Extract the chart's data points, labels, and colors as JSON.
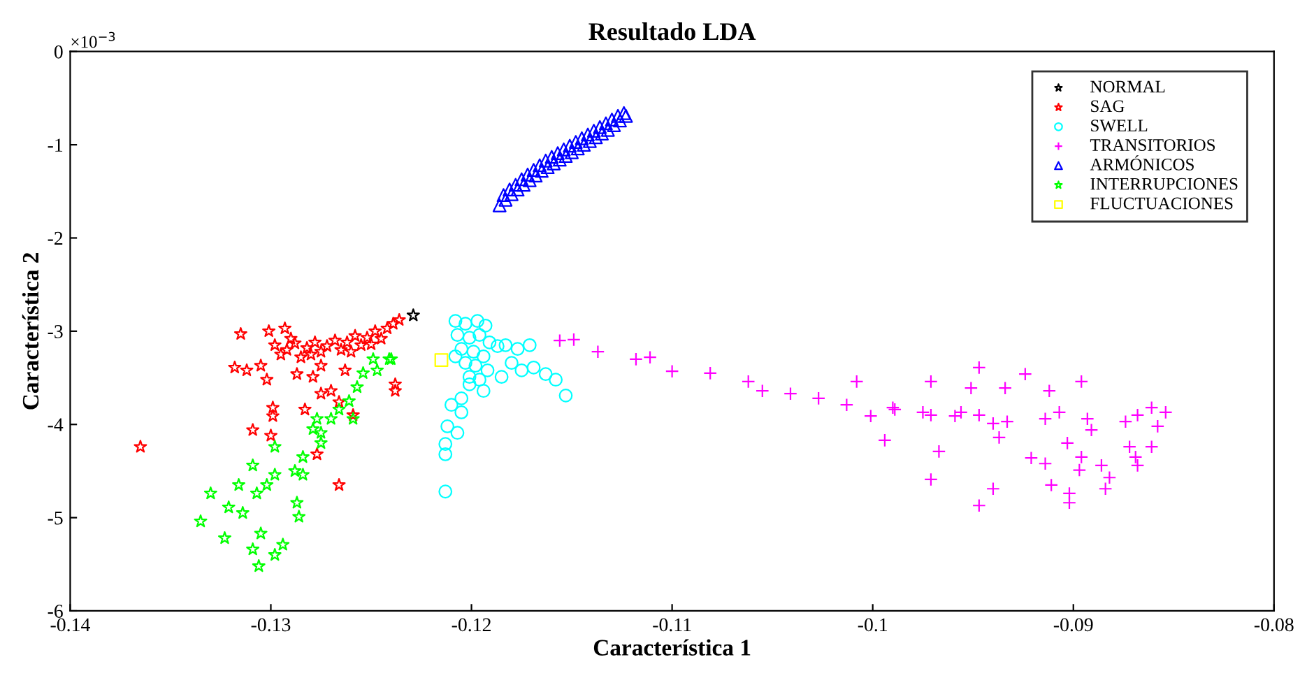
{
  "chart_data": {
    "type": "scatter",
    "title": "Resultado LDA",
    "xlabel": "Característica 1",
    "ylabel": "Característica 2",
    "annotations": [
      "×10$^{−3}$"
    ],
    "xlim": [
      -0.14,
      -0.08
    ],
    "xticks": [
      -0.14,
      -0.13,
      -0.12,
      -0.11,
      -0.1,
      -0.09,
      -0.08
    ],
    "ylim": [
      -6,
      0
    ],
    "yticks": [
      0,
      -1,
      -2,
      -3,
      -4,
      -5,
      -6
    ],
    "grid": false,
    "legend": "top right",
    "series": [
      {
        "name": "NORMAL",
        "color": "#000000",
        "marker": "star",
        "x": [
          -0.1229
        ],
        "values": [
          -2.83
        ]
      },
      {
        "name": "SAG",
        "color": "#ff0000",
        "marker": "star",
        "x": [
          -0.1365,
          -0.1315,
          -0.1318,
          -0.1312,
          -0.1305,
          -0.1302,
          -0.1301,
          -0.1293,
          -0.1299,
          -0.1299,
          -0.1309,
          -0.13,
          -0.1287,
          -0.1279,
          -0.1283,
          -0.1275,
          -0.127,
          -0.1266,
          -0.1259,
          -0.1266,
          -0.1238,
          -0.1238,
          -0.1277,
          -0.1263,
          -0.1275,
          -0.1298,
          -0.1295,
          -0.1292,
          -0.1288,
          -0.1285,
          -0.1282,
          -0.1278,
          -0.1275,
          -0.1272,
          -0.1268,
          -0.1265,
          -0.1262,
          -0.1258,
          -0.1255,
          -0.1252,
          -0.1248,
          -0.1245,
          -0.1242,
          -0.1239,
          -0.1236,
          -0.129,
          -0.128,
          -0.126,
          -0.125
        ],
        "values": [
          -4.24,
          -3.03,
          -3.39,
          -3.42,
          -3.37,
          -3.52,
          -3.0,
          -2.97,
          -3.82,
          -3.91,
          -4.06,
          -4.12,
          -3.46,
          -3.49,
          -3.84,
          -3.67,
          -3.64,
          -3.76,
          -3.9,
          -4.65,
          -3.57,
          -3.64,
          -4.32,
          -3.42,
          -3.37,
          -3.15,
          -3.25,
          -3.2,
          -3.13,
          -3.28,
          -3.18,
          -3.12,
          -3.22,
          -3.16,
          -3.1,
          -3.2,
          -3.12,
          -3.05,
          -3.15,
          -3.07,
          -3.0,
          -3.08,
          -2.97,
          -2.92,
          -2.88,
          -3.08,
          -3.25,
          -3.22,
          -3.14
        ]
      },
      {
        "name": "SWELL",
        "color": "#00ffff",
        "marker": "circle",
        "x": [
          -0.1208,
          -0.1203,
          -0.1197,
          -0.1193,
          -0.1207,
          -0.1201,
          -0.1196,
          -0.1191,
          -0.1205,
          -0.1199,
          -0.1194,
          -0.1203,
          -0.1198,
          -0.1192,
          -0.1201,
          -0.1196,
          -0.1208,
          -0.1187,
          -0.1183,
          -0.1177,
          -0.1171,
          -0.118,
          -0.1175,
          -0.1169,
          -0.1163,
          -0.1158,
          -0.1153,
          -0.1185,
          -0.1194,
          -0.1205,
          -0.121,
          -0.1205,
          -0.1212,
          -0.1213,
          -0.1213,
          -0.1213,
          -0.1207,
          -0.1201
        ],
        "values": [
          -2.89,
          -2.92,
          -2.89,
          -2.94,
          -3.04,
          -3.07,
          -3.04,
          -3.12,
          -3.19,
          -3.22,
          -3.27,
          -3.34,
          -3.37,
          -3.42,
          -3.49,
          -3.52,
          -3.27,
          -3.16,
          -3.15,
          -3.19,
          -3.15,
          -3.34,
          -3.42,
          -3.39,
          -3.46,
          -3.52,
          -3.69,
          -3.49,
          -3.64,
          -3.72,
          -3.79,
          -3.87,
          -4.02,
          -4.21,
          -4.32,
          -4.72,
          -4.09,
          -3.57
        ]
      },
      {
        "name": "TRANSITORIOS",
        "color": "#ff00ff",
        "marker": "cross",
        "x": [
          -0.1156,
          -0.1149,
          -0.1137,
          -0.1118,
          -0.1111,
          -0.11,
          -0.1081,
          -0.1062,
          -0.1055,
          -0.1041,
          -0.1027,
          -0.1008,
          -0.1013,
          -0.1001,
          -0.0994,
          -0.099,
          -0.0971,
          -0.0971,
          -0.0971,
          -0.0967,
          -0.0959,
          -0.0947,
          -0.0951,
          -0.0947,
          -0.094,
          -0.0947,
          -0.094,
          -0.0934,
          -0.0933,
          -0.0937,
          -0.0924,
          -0.0912,
          -0.0921,
          -0.0914,
          -0.0914,
          -0.0911,
          -0.0907,
          -0.0903,
          -0.0902,
          -0.0902,
          -0.0896,
          -0.0896,
          -0.0893,
          -0.0897,
          -0.0886,
          -0.0884,
          -0.0882,
          -0.0874,
          -0.0868,
          -0.0861,
          -0.0869,
          -0.0868,
          -0.0858,
          -0.0854,
          -0.0861,
          -0.0872,
          -0.0891,
          -0.0956,
          -0.0989,
          -0.0975
        ],
        "values": [
          -3.1,
          -3.09,
          -3.22,
          -3.3,
          -3.28,
          -3.43,
          -3.45,
          -3.54,
          -3.64,
          -3.67,
          -3.72,
          -3.54,
          -3.79,
          -3.91,
          -4.17,
          -3.82,
          -3.54,
          -3.9,
          -4.59,
          -4.29,
          -3.91,
          -3.39,
          -3.61,
          -4.87,
          -4.69,
          -3.9,
          -3.99,
          -3.61,
          -3.97,
          -4.14,
          -3.46,
          -3.64,
          -4.36,
          -3.94,
          -4.42,
          -4.65,
          -3.87,
          -4.2,
          -4.74,
          -4.84,
          -3.54,
          -4.35,
          -3.94,
          -4.49,
          -4.44,
          -4.69,
          -4.57,
          -3.97,
          -3.9,
          -3.82,
          -4.35,
          -4.44,
          -4.02,
          -3.87,
          -4.24,
          -4.24,
          -4.06,
          -3.87,
          -3.84,
          -3.87
        ]
      },
      {
        "name": "ARMÓNICOS",
        "color": "#0000ff",
        "marker": "triangle",
        "x": [
          -0.1186,
          -0.1183,
          -0.118,
          -0.1177,
          -0.1174,
          -0.1171,
          -0.1168,
          -0.1165,
          -0.1162,
          -0.1159,
          -0.1156,
          -0.1153,
          -0.115,
          -0.1147,
          -0.1144,
          -0.1141,
          -0.1138,
          -0.1135,
          -0.1132,
          -0.1129,
          -0.1126,
          -0.1123,
          -0.1184,
          -0.1181,
          -0.1178,
          -0.1175,
          -0.1172,
          -0.1169,
          -0.1166,
          -0.1163,
          -0.116,
          -0.1157,
          -0.1154,
          -0.1151,
          -0.1148,
          -0.1145,
          -0.1142,
          -0.1139,
          -0.1136,
          -0.1133,
          -0.113,
          -0.1127,
          -0.1124
        ],
        "values": [
          -1.65,
          -1.59,
          -1.53,
          -1.48,
          -1.43,
          -1.38,
          -1.33,
          -1.28,
          -1.24,
          -1.2,
          -1.16,
          -1.12,
          -1.08,
          -1.04,
          -1.0,
          -0.96,
          -0.92,
          -0.88,
          -0.84,
          -0.79,
          -0.74,
          -0.69,
          -1.54,
          -1.48,
          -1.43,
          -1.37,
          -1.32,
          -1.27,
          -1.22,
          -1.17,
          -1.13,
          -1.09,
          -1.05,
          -1.01,
          -0.97,
          -0.93,
          -0.89,
          -0.85,
          -0.81,
          -0.77,
          -0.73,
          -0.69,
          -0.66
        ]
      },
      {
        "name": "INTERRUPCIONES",
        "color": "#00ff00",
        "marker": "star",
        "x": [
          -0.124,
          -0.1249,
          -0.1254,
          -0.1257,
          -0.1261,
          -0.1266,
          -0.1277,
          -0.1279,
          -0.1275,
          -0.1298,
          -0.1288,
          -0.1298,
          -0.1302,
          -0.1284,
          -0.1309,
          -0.1316,
          -0.1307,
          -0.133,
          -0.1321,
          -0.1314,
          -0.1335,
          -0.1323,
          -0.1305,
          -0.1294,
          -0.1298,
          -0.1306,
          -0.1309,
          -0.1287,
          -0.1286,
          -0.1259,
          -0.1247,
          -0.1241,
          -0.127,
          -0.1284,
          -0.1275
        ],
        "values": [
          -3.3,
          -3.3,
          -3.45,
          -3.6,
          -3.75,
          -3.84,
          -3.94,
          -4.05,
          -4.2,
          -4.24,
          -4.5,
          -4.54,
          -4.65,
          -4.54,
          -4.44,
          -4.65,
          -4.74,
          -4.74,
          -4.89,
          -4.95,
          -5.04,
          -5.22,
          -5.17,
          -5.29,
          -5.4,
          -5.52,
          -5.34,
          -4.84,
          -4.99,
          -3.94,
          -3.42,
          -3.3,
          -3.94,
          -4.35,
          -4.09
        ]
      },
      {
        "name": "FLUCTUACIONES",
        "color": "#ffff00",
        "marker": "square",
        "x": [
          -0.1215
        ],
        "values": [
          -3.31
        ]
      }
    ]
  }
}
